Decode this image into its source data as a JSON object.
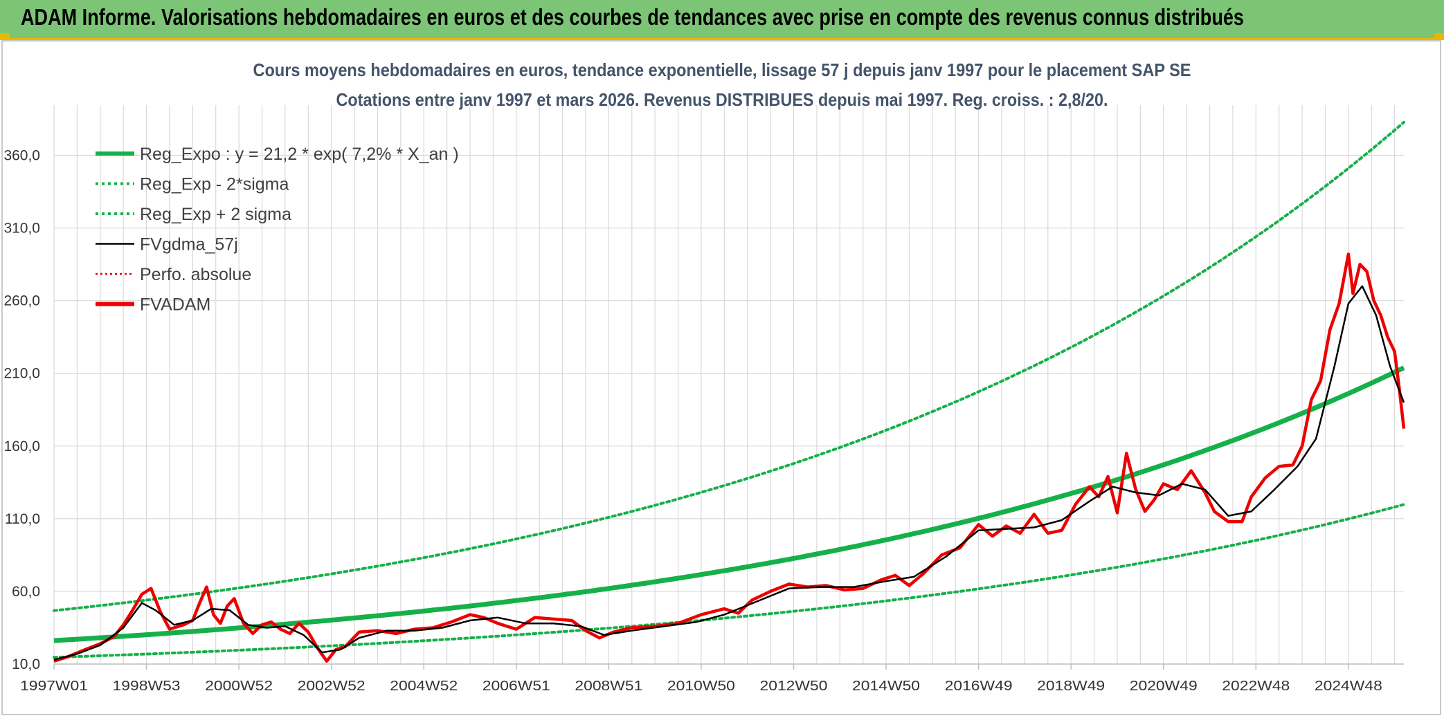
{
  "header": {
    "title": "ADAM Informe. Valorisations hebdomadaires en euros et des courbes de tendances avec prise en compte des revenus connus distribués"
  },
  "colors": {
    "banner": "#7cc576",
    "regression": "#16b04a",
    "sigma": "#16b04a",
    "gdma": "#000000",
    "perfo": "#e00000",
    "fvadam": "#ee0000",
    "grid": "#d9d9d9"
  },
  "chart_data": {
    "type": "line",
    "title_line1": "Cours moyens hebdomadaires en euros, tendance exponentielle, lissage 57 j depuis janv 1997 pour le placement SAP SE",
    "title_line2": "Cotations entre janv 1997 et mars 2026. Revenus DISTRIBUES depuis mai 1997. Reg. croiss. : 2,8/20.",
    "xlabel": "",
    "ylabel": "",
    "x_range": [
      1997.0,
      2026.2
    ],
    "ylim": [
      10,
      385
    ],
    "y_ticks": [
      10,
      60,
      110,
      160,
      210,
      260,
      310,
      360
    ],
    "y_tick_labels": [
      "10,0",
      "60,0",
      "110,0",
      "160,0",
      "210,0",
      "260,0",
      "310,0",
      "360,0"
    ],
    "x_tick_labels": [
      "1997W01",
      "1998W53",
      "2000W52",
      "2002W52",
      "2004W52",
      "2006W51",
      "2008W51",
      "2010W50",
      "2012W50",
      "2014W50",
      "2016W49",
      "2018W49",
      "2020W49",
      "2022W48",
      "2024W48"
    ],
    "x_tick_positions": [
      1997.0,
      1999.0,
      2001.0,
      2003.0,
      2005.0,
      2007.0,
      2009.0,
      2011.0,
      2013.0,
      2015.0,
      2017.0,
      2019.0,
      2021.0,
      2023.0,
      2025.0
    ],
    "legend": [
      {
        "label": "Reg_Expo : y = 21,2 * exp( 7,2% *  X_an )",
        "style": "solid-thick",
        "color": "#16b04a"
      },
      {
        "label": "Reg_Exp - 2*sigma",
        "style": "dotted",
        "color": "#16b04a"
      },
      {
        "label": "Reg_Exp + 2 sigma",
        "style": "dotted",
        "color": "#16b04a"
      },
      {
        "label": "FVgdma_57j",
        "style": "solid",
        "color": "#000000"
      },
      {
        "label": "Perfo. absolue",
        "style": "dotted-thin",
        "color": "#e00000"
      },
      {
        "label": "FVADAM",
        "style": "solid-thick",
        "color": "#ee0000"
      }
    ],
    "regression": {
      "a": 21.2,
      "rate": 0.072,
      "x0": 1994.1,
      "lower_factor": 0.56,
      "upper_factor": 1.79
    },
    "series": [
      {
        "name": "FVADAM",
        "x": [
          1997.0,
          1997.3,
          1997.6,
          1998.0,
          1998.3,
          1998.5,
          1998.7,
          1998.9,
          1999.1,
          1999.3,
          1999.5,
          1999.8,
          2000.0,
          2000.15,
          2000.3,
          2000.45,
          2000.6,
          2000.75,
          2000.9,
          2001.1,
          2001.3,
          2001.5,
          2001.7,
          2001.9,
          2002.1,
          2002.3,
          2002.5,
          2002.7,
          2002.9,
          2003.1,
          2003.3,
          2003.6,
          2004.0,
          2004.4,
          2004.8,
          2005.2,
          2005.6,
          2006.0,
          2006.3,
          2006.6,
          2007.0,
          2007.4,
          2007.8,
          2008.2,
          2008.5,
          2008.8,
          2009.1,
          2009.5,
          2010.0,
          2010.5,
          2011.0,
          2011.5,
          2011.8,
          2012.1,
          2012.5,
          2012.9,
          2013.3,
          2013.7,
          2014.1,
          2014.5,
          2014.9,
          2015.2,
          2015.5,
          2015.8,
          2016.2,
          2016.6,
          2017.0,
          2017.3,
          2017.6,
          2017.9,
          2018.2,
          2018.5,
          2018.8,
          2019.1,
          2019.4,
          2019.6,
          2019.8,
          2020.0,
          2020.2,
          2020.4,
          2020.6,
          2020.8,
          2021.0,
          2021.3,
          2021.6,
          2021.9,
          2022.1,
          2022.4,
          2022.7,
          2022.9,
          2023.2,
          2023.5,
          2023.8,
          2024.0,
          2024.2,
          2024.4,
          2024.6,
          2024.8,
          2025.0,
          2025.1,
          2025.25,
          2025.4,
          2025.55,
          2025.7,
          2025.85,
          2026.0,
          2026.1,
          2026.2
        ],
        "y": [
          12,
          15,
          19,
          24,
          29,
          37,
          47,
          58,
          62,
          46,
          34,
          37,
          40,
          52,
          63,
          44,
          38,
          50,
          55,
          38,
          31,
          37,
          39,
          34,
          31,
          38,
          32,
          21,
          12,
          20,
          22,
          32,
          33,
          31,
          34,
          35,
          39,
          44,
          42,
          38,
          34,
          42,
          41,
          40,
          33,
          28,
          32,
          35,
          36,
          38,
          44,
          48,
          45,
          54,
          60,
          65,
          63,
          64,
          61,
          62,
          68,
          71,
          64,
          72,
          85,
          90,
          106,
          98,
          105,
          100,
          113,
          100,
          102,
          120,
          132,
          125,
          139,
          114,
          155,
          130,
          115,
          123,
          134,
          130,
          143,
          128,
          115,
          108,
          108,
          125,
          138,
          146,
          147,
          160,
          192,
          205,
          240,
          258,
          292,
          265,
          285,
          280,
          260,
          250,
          235,
          225,
          200,
          172
        ]
      },
      {
        "name": "FVgdma_57j",
        "x": [
          1997.0,
          1997.5,
          1998.0,
          1998.5,
          1998.9,
          1999.2,
          1999.6,
          2000.0,
          2000.4,
          2000.8,
          2001.2,
          2001.6,
          2002.0,
          2002.4,
          2002.8,
          2003.2,
          2003.6,
          2004.2,
          2004.8,
          2005.4,
          2006.0,
          2006.6,
          2007.2,
          2007.8,
          2008.4,
          2008.9,
          2009.5,
          2010.2,
          2010.9,
          2011.5,
          2012.2,
          2012.9,
          2013.6,
          2014.3,
          2015.0,
          2015.6,
          2016.3,
          2017.0,
          2017.6,
          2018.2,
          2018.8,
          2019.4,
          2019.9,
          2020.4,
          2020.9,
          2021.4,
          2021.9,
          2022.4,
          2022.9,
          2023.4,
          2023.9,
          2024.3,
          2024.7,
          2025.0,
          2025.3,
          2025.6,
          2025.9,
          2026.2
        ],
        "y": [
          13,
          17,
          23,
          35,
          52,
          47,
          37,
          40,
          48,
          47,
          37,
          35,
          36,
          30,
          18,
          20,
          28,
          33,
          33,
          35,
          40,
          42,
          38,
          38,
          36,
          30,
          33,
          36,
          39,
          44,
          53,
          62,
          63,
          63,
          67,
          70,
          84,
          102,
          103,
          104,
          109,
          122,
          132,
          128,
          126,
          134,
          130,
          112,
          115,
          130,
          146,
          165,
          215,
          258,
          270,
          250,
          215,
          190
        ]
      }
    ]
  }
}
